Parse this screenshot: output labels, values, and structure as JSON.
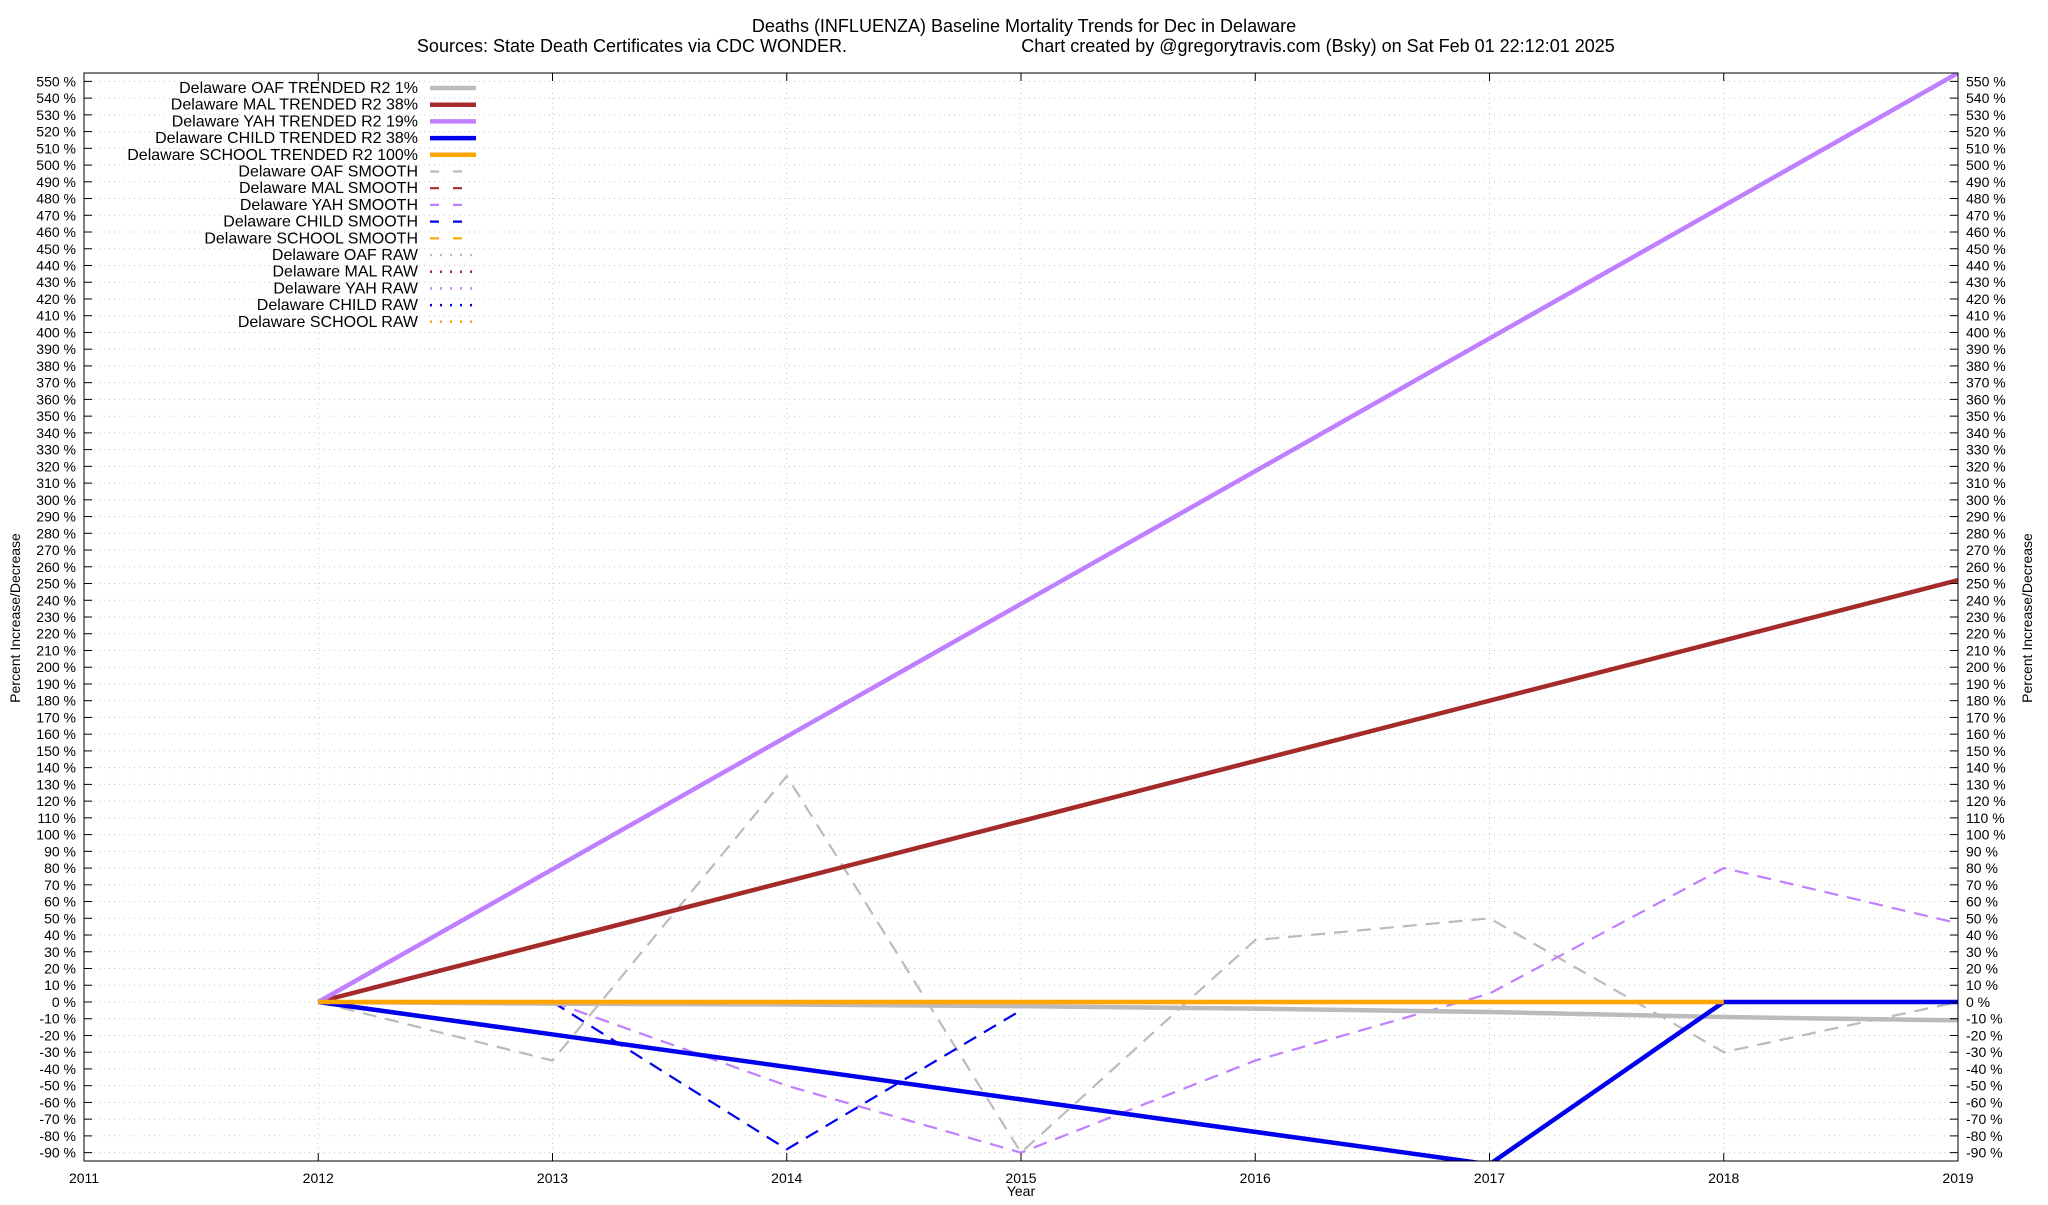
{
  "chart_data": {
    "type": "line",
    "title": "Deaths (INFLUENZA)  Baseline Mortality Trends for Dec in Delaware",
    "subtitle_left": "Sources: State Death Certificates via CDC WONDER.",
    "subtitle_right": "Chart created by @gregorytravis.com (Bsky) on Sat Feb 01 22:12:01 2025",
    "xlabel": "Year",
    "ylabel": "Percent Increase/Decrease",
    "y2label": "Percent Increase/Decrease",
    "xlim": [
      2011,
      2019
    ],
    "ylim": [
      -95,
      555
    ],
    "x_ticks": [
      "2011",
      "2012",
      "2013",
      "2014",
      "2015",
      "2016",
      "2017",
      "2018",
      "2019"
    ],
    "y_tick_step": 10,
    "y_tick_min": -90,
    "y_tick_max": 550,
    "y_tick_suffix": " %",
    "grid": true,
    "legend_position": "top-left",
    "series": [
      {
        "name": "Delaware OAF TRENDED R2  1%",
        "style": "solid",
        "color": "#bbbbbb",
        "x": [
          2012,
          2013,
          2014,
          2015,
          2016,
          2017,
          2018,
          2019
        ],
        "values": [
          0,
          -1,
          -1.5,
          -2.5,
          -4,
          -6,
          -9,
          -11
        ]
      },
      {
        "name": "Delaware MAL TRENDED R2  38%",
        "style": "solid",
        "color": "#a52a2a",
        "x": [
          2012,
          2019
        ],
        "values": [
          0,
          252
        ]
      },
      {
        "name": "Delaware YAH TRENDED R2  19%",
        "style": "solid",
        "color": "#bf7fff",
        "x": [
          2012,
          2019
        ],
        "values": [
          0,
          555
        ]
      },
      {
        "name": "Delaware CHILD TRENDED R2  38%",
        "style": "solid",
        "color": "#0000ee",
        "x": [
          2012,
          2017,
          2018,
          2019
        ],
        "values": [
          0,
          -97,
          0,
          0
        ]
      },
      {
        "name": "Delaware SCHOOL TRENDED R2 100%",
        "style": "solid",
        "color": "#ffa500",
        "x": [
          2012,
          2018
        ],
        "values": [
          0,
          0
        ]
      },
      {
        "name": "Delaware OAF SMOOTH",
        "style": "dashed",
        "color": "#bbbbbb",
        "x": [
          2012,
          2013,
          2014,
          2015,
          2016,
          2017,
          2018,
          2019
        ],
        "values": [
          0,
          -35,
          135,
          -90,
          37,
          50,
          -30,
          0
        ]
      },
      {
        "name": "Delaware MAL SMOOTH",
        "style": "dashed",
        "color": "#a52a2a",
        "x": [],
        "values": []
      },
      {
        "name": "Delaware YAH SMOOTH",
        "style": "dashed",
        "color": "#bf7fff",
        "x": [
          2013,
          2014,
          2015,
          2016,
          2017,
          2018,
          2019
        ],
        "values": [
          0,
          -50,
          -90,
          -35,
          5,
          80,
          47
        ]
      },
      {
        "name": "Delaware CHILD SMOOTH",
        "style": "dashed",
        "color": "#0000ee",
        "x": [
          2013,
          2014,
          2015
        ],
        "values": [
          0,
          -88,
          -5
        ]
      },
      {
        "name": "Delaware SCHOOL SMOOTH",
        "style": "dashed",
        "color": "#ffa500",
        "x": [],
        "values": []
      },
      {
        "name": "Delaware OAF RAW",
        "style": "dotted",
        "color": "#bbbbbb",
        "x": [],
        "values": []
      },
      {
        "name": "Delaware MAL RAW",
        "style": "dotted",
        "color": "#a52a2a",
        "x": [],
        "values": []
      },
      {
        "name": "Delaware YAH RAW",
        "style": "dotted",
        "color": "#bf7fff",
        "x": [],
        "values": []
      },
      {
        "name": "Delaware CHILD RAW",
        "style": "dotted",
        "color": "#0000ee",
        "x": [],
        "values": []
      },
      {
        "name": "Delaware SCHOOL RAW",
        "style": "dotted",
        "color": "#ffa500",
        "x": [],
        "values": []
      }
    ]
  }
}
